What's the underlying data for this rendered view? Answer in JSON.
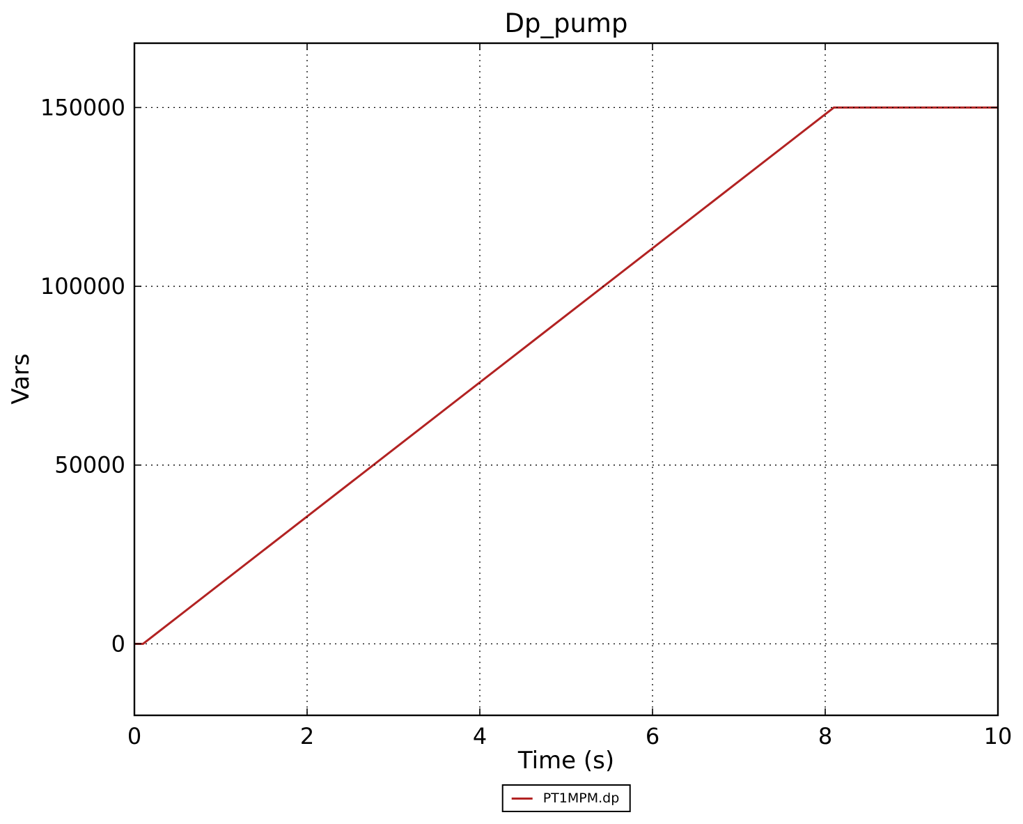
{
  "chart_data": {
    "type": "line",
    "title": "Dp_pump",
    "xlabel": "Time (s)",
    "ylabel": "Vars",
    "xlim": [
      0,
      10
    ],
    "ylim": [
      -20000,
      168000
    ],
    "xticks": [
      0,
      2,
      4,
      6,
      8,
      10
    ],
    "yticks": [
      0,
      50000,
      100000,
      150000
    ],
    "grid": true,
    "grid_style": "dotted",
    "grid_color": "#000000",
    "axis_color": "#000000",
    "background_color": "#ffffff",
    "legend_position": "below-chart-center",
    "series": [
      {
        "name": "PT1MPM.dp",
        "color": "#b22222",
        "line_width": 3,
        "points": [
          [
            0,
            0
          ],
          [
            0.1,
            0
          ],
          [
            8.1,
            150000
          ],
          [
            10,
            150000
          ]
        ]
      }
    ]
  }
}
